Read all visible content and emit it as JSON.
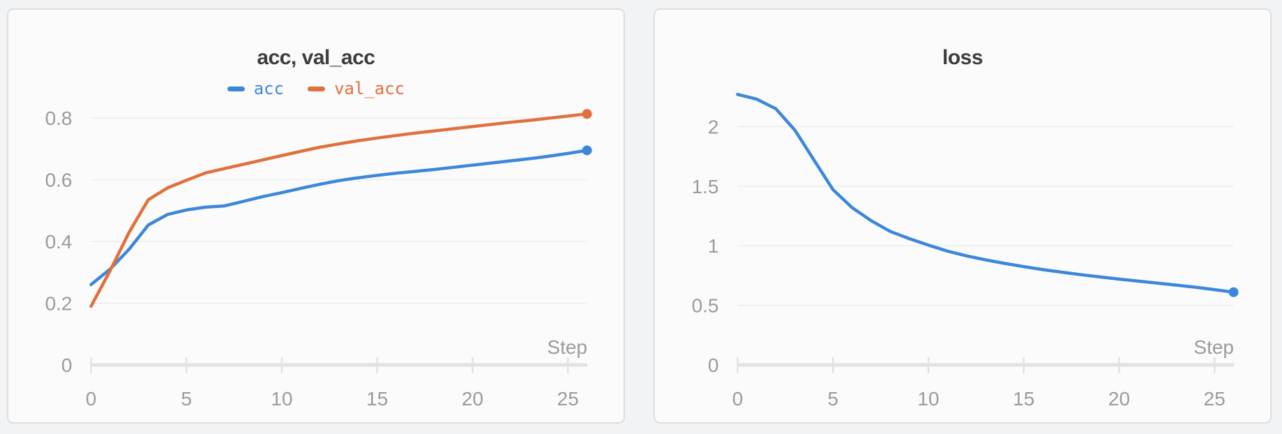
{
  "page": {
    "background": "#f2f3f4",
    "panel_background": "#fbfbfc",
    "panel_border": "#dcdcdc"
  },
  "colors": {
    "grid": "#ededed",
    "axis": "#e2e2e2",
    "tick_mark": "#e2e2e2",
    "tick_label": "#9b9b9b",
    "title": "#3d3d3d",
    "series_blue": "#3b87d9",
    "series_orange": "#e0703c"
  },
  "chart_data": [
    {
      "type": "line",
      "title": "acc, val_acc",
      "x_axis_label": "Step",
      "grid": true,
      "legend_position": "top-center",
      "x": [
        0,
        1,
        2,
        3,
        4,
        5,
        6,
        7,
        8,
        9,
        10,
        11,
        12,
        13,
        14,
        15,
        16,
        17,
        18,
        19,
        20,
        21,
        22,
        23,
        24,
        25,
        26
      ],
      "xticks": [
        0,
        5,
        10,
        15,
        20,
        25
      ],
      "xlim": [
        0,
        26
      ],
      "ylim": [
        0,
        0.88
      ],
      "yticks": [
        0,
        0.2,
        0.4,
        0.6,
        0.8
      ],
      "series": [
        {
          "name": "acc",
          "color": "#3b87d9",
          "values": [
            0.26,
            0.31,
            0.375,
            0.453,
            0.487,
            0.502,
            0.511,
            0.515,
            0.53,
            0.545,
            0.558,
            0.572,
            0.585,
            0.597,
            0.606,
            0.614,
            0.621,
            0.627,
            0.633,
            0.64,
            0.647,
            0.654,
            0.661,
            0.668,
            0.676,
            0.685,
            0.695
          ]
        },
        {
          "name": "val_acc",
          "color": "#e0703c",
          "values": [
            0.19,
            0.305,
            0.43,
            0.535,
            0.573,
            0.598,
            0.622,
            0.636,
            0.65,
            0.664,
            0.678,
            0.692,
            0.705,
            0.716,
            0.726,
            0.735,
            0.743,
            0.751,
            0.758,
            0.765,
            0.772,
            0.779,
            0.786,
            0.792,
            0.799,
            0.806,
            0.813
          ]
        }
      ]
    },
    {
      "type": "line",
      "title": "loss",
      "x_axis_label": "Step",
      "grid": true,
      "legend_position": "none",
      "x": [
        0,
        1,
        2,
        3,
        4,
        5,
        6,
        7,
        8,
        9,
        10,
        11,
        12,
        13,
        14,
        15,
        16,
        17,
        18,
        19,
        20,
        21,
        22,
        23,
        24,
        25,
        26
      ],
      "xticks": [
        0,
        5,
        10,
        15,
        20,
        25
      ],
      "xlim": [
        0,
        26
      ],
      "ylim": [
        0,
        2.38
      ],
      "yticks": [
        0,
        0.5,
        1,
        1.5,
        2
      ],
      "series": [
        {
          "name": "loss",
          "color": "#3b87d9",
          "values": [
            2.27,
            2.23,
            2.15,
            1.97,
            1.72,
            1.47,
            1.32,
            1.21,
            1.12,
            1.06,
            1.005,
            0.955,
            0.915,
            0.882,
            0.852,
            0.825,
            0.8,
            0.778,
            0.757,
            0.738,
            0.72,
            0.703,
            0.687,
            0.67,
            0.652,
            0.632,
            0.61
          ]
        }
      ]
    }
  ]
}
